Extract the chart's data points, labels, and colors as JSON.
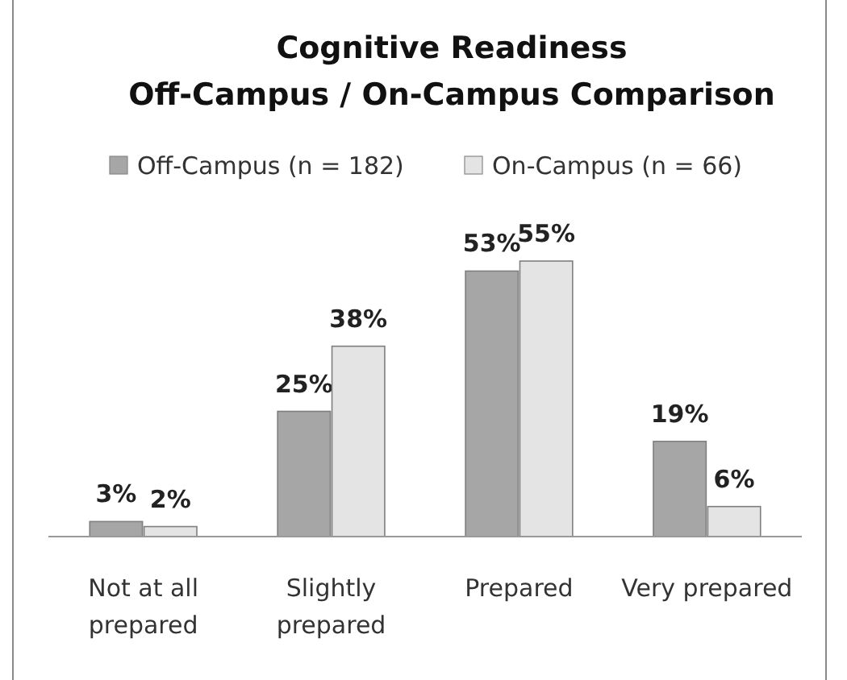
{
  "chart_data": {
    "type": "bar",
    "title": "Cognitive Readiness\nOff-Campus / On-Campus Comparison",
    "categories": [
      "Not at all prepared",
      "Slightly prepared",
      "Prepared",
      "Very prepared"
    ],
    "series": [
      {
        "name": "Off-Campus (n = 182)",
        "color": "#a6a6a6",
        "values": [
          3,
          25,
          53,
          19
        ],
        "value_labels": [
          "3%",
          "25%",
          "53%",
          "19%"
        ]
      },
      {
        "name": "On-Campus (n = 66)",
        "color": "#e4e4e4",
        "values": [
          2,
          38,
          55,
          6
        ],
        "value_labels": [
          "2%",
          "38%",
          "55%",
          "6%"
        ]
      }
    ],
    "legend": "top"
  }
}
